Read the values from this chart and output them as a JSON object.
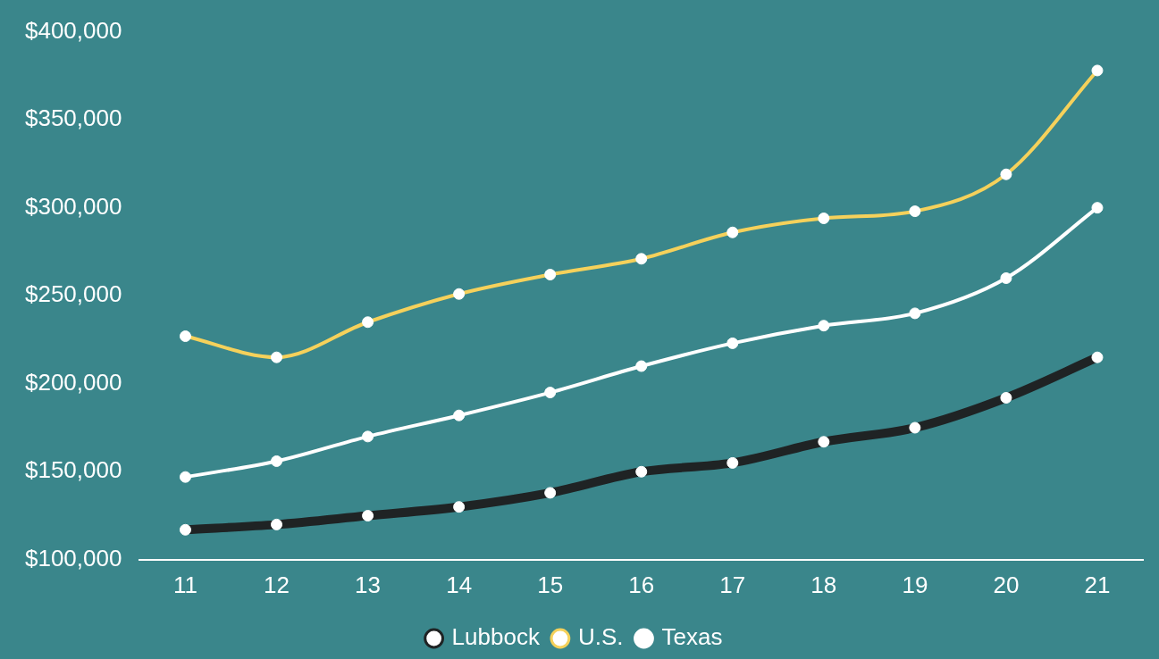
{
  "chart_data": {
    "type": "line",
    "categories": [
      "11",
      "12",
      "13",
      "14",
      "15",
      "16",
      "17",
      "18",
      "19",
      "20",
      "21"
    ],
    "series": [
      {
        "name": "Lubbock",
        "color": "#1f2324",
        "values": [
          117000,
          120000,
          125000,
          130000,
          138000,
          150000,
          155000,
          167000,
          175000,
          192000,
          215000
        ]
      },
      {
        "name": "U.S.",
        "color": "#f5d15b",
        "values": [
          227000,
          215000,
          235000,
          251000,
          262000,
          271000,
          286000,
          294000,
          298000,
          319000,
          378000
        ]
      },
      {
        "name": "Texas",
        "color": "#ffffff",
        "values": [
          147000,
          156000,
          170000,
          182000,
          195000,
          210000,
          223000,
          233000,
          240000,
          260000,
          300000
        ]
      }
    ],
    "ylim": [
      100000,
      400000
    ],
    "yticks": [
      {
        "value": 100000,
        "label": "$100,000"
      },
      {
        "value": 150000,
        "label": "$150,000"
      },
      {
        "value": 200000,
        "label": "$200,000"
      },
      {
        "value": 250000,
        "label": "$250,000"
      },
      {
        "value": 300000,
        "label": "$300,000"
      },
      {
        "value": 350000,
        "label": "$350,000"
      },
      {
        "value": 400000,
        "label": "$400,000"
      }
    ],
    "grid": false,
    "legend": "bottom",
    "marker": "circle",
    "line_style": "solid"
  }
}
